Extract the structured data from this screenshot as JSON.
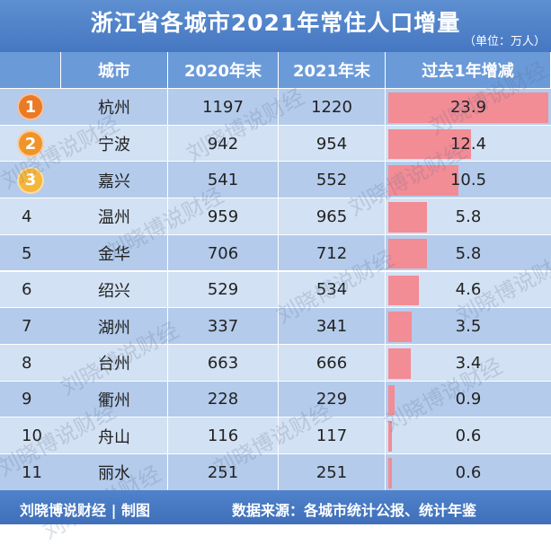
{
  "header": {
    "title": "浙江省各城市2021年常住人口增量",
    "unit": "（单位：万人）"
  },
  "chart_data": {
    "type": "table",
    "columns": [
      "",
      "城市",
      "2020年末",
      "2021年末",
      "过去1年增减"
    ],
    "rows": [
      {
        "rank": "1",
        "city": "杭州",
        "y2020": "1197",
        "y2021": "1220",
        "change": "23.9",
        "change_value": 23.9
      },
      {
        "rank": "2",
        "city": "宁波",
        "y2020": "942",
        "y2021": "954",
        "change": "12.4",
        "change_value": 12.4
      },
      {
        "rank": "3",
        "city": "嘉兴",
        "y2020": "541",
        "y2021": "552",
        "change": "10.5",
        "change_value": 10.5
      },
      {
        "rank": "4",
        "city": "温州",
        "y2020": "959",
        "y2021": "965",
        "change": "5.8",
        "change_value": 5.8
      },
      {
        "rank": "5",
        "city": "金华",
        "y2020": "706",
        "y2021": "712",
        "change": "5.8",
        "change_value": 5.8
      },
      {
        "rank": "6",
        "city": "绍兴",
        "y2020": "529",
        "y2021": "534",
        "change": "4.6",
        "change_value": 4.6
      },
      {
        "rank": "7",
        "city": "湖州",
        "y2020": "337",
        "y2021": "341",
        "change": "3.5",
        "change_value": 3.5
      },
      {
        "rank": "8",
        "city": "台州",
        "y2020": "663",
        "y2021": "666",
        "change": "3.4",
        "change_value": 3.4
      },
      {
        "rank": "9",
        "city": "衢州",
        "y2020": "228",
        "y2021": "229",
        "change": "0.9",
        "change_value": 0.9
      },
      {
        "rank": "10",
        "city": "舟山",
        "y2020": "116",
        "y2021": "117",
        "change": "0.6",
        "change_value": 0.6
      },
      {
        "rank": "11",
        "city": "丽水",
        "y2020": "251",
        "y2021": "251",
        "change": "0.6",
        "change_value": 0.6
      }
    ],
    "bar_max": 23.9
  },
  "colors": {
    "bar": "#f28c95",
    "rank1": "#ea7a24",
    "rank2": "#f0942a",
    "rank3": "#f6b63a"
  },
  "watermark": "刘晓博说财经",
  "footer": {
    "credit": "刘晓博说财经 | 制图",
    "source": "数据来源：各城市统计公报、统计年鉴"
  }
}
